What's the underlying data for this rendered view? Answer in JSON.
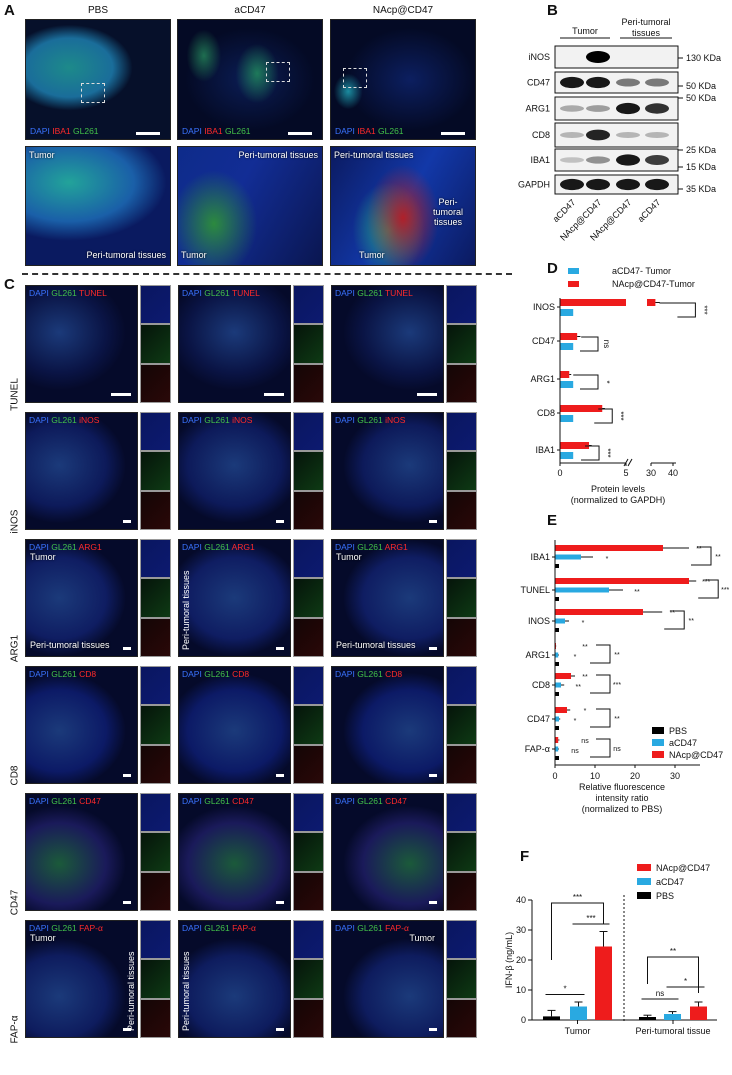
{
  "panel_labels": {
    "a": "A",
    "b": "B",
    "c": "C",
    "d": "D",
    "e": "E",
    "f": "F"
  },
  "panel_a": {
    "columns": [
      "PBS",
      "aCD47",
      "NAcp@CD47"
    ],
    "stain": {
      "dapi": "DAPI",
      "marker": "IBA1",
      "gl": "GL261"
    },
    "zoom_labels": [
      {
        "tumor": "Tumor",
        "peri": "Peri-tumoral tissues"
      },
      {
        "tumor": "Tumor",
        "peri": "Peri-tumoral tissues"
      },
      {
        "tumor": "Tumor",
        "peri_top": "Peri-tumoral tissues",
        "peri_right": "Peri-tumoral tissues"
      }
    ]
  },
  "panel_b": {
    "groups": [
      {
        "label": "Tumor"
      },
      {
        "label": "Peri-tumoral tissues"
      }
    ],
    "lanes": [
      "aCD47",
      "NAcp@CD47",
      "NAcp@CD47",
      "aCD47"
    ],
    "blots": [
      {
        "protein": "iNOS",
        "bands": [
          0,
          1,
          0,
          0
        ]
      },
      {
        "protein": "CD47",
        "bands": [
          0.9,
          0.9,
          0.5,
          0.5
        ]
      },
      {
        "protein": "ARG1",
        "bands": [
          0.3,
          0.35,
          0.9,
          0.8
        ]
      },
      {
        "protein": "CD8",
        "bands": [
          0.25,
          0.85,
          0.25,
          0.25
        ]
      },
      {
        "protein": "IBA1",
        "bands": [
          0.2,
          0.4,
          0.9,
          0.75
        ]
      },
      {
        "protein": "GAPDH",
        "bands": [
          0.9,
          0.9,
          0.9,
          0.9
        ]
      }
    ],
    "markers": [
      "130 KDa",
      "50 KDa",
      "50 KDa",
      "25 KDa",
      "15 KDa",
      "35 KDa"
    ]
  },
  "panel_c": {
    "stain": {
      "dapi": "DAPI",
      "gl": "GL261"
    },
    "rows": [
      {
        "label": "TUNEL",
        "marker": "TUNEL",
        "annotations": [
          [],
          [],
          []
        ]
      },
      {
        "label": "iNOS",
        "marker": "iNOS",
        "annotations": [
          [],
          [],
          []
        ]
      },
      {
        "label": "ARG1",
        "marker": "ARG1",
        "annotations": [
          [
            {
              "text": "Tumor",
              "pos": "top"
            },
            {
              "text": "Peri-tumoral tissues",
              "pos": "bottom"
            }
          ],
          [
            {
              "text": "Peri-tumoral tissues",
              "pos": "vleft"
            }
          ],
          [
            {
              "text": "Tumor",
              "pos": "top"
            },
            {
              "text": "Peri-tumoral tissues",
              "pos": "bottom"
            }
          ]
        ]
      },
      {
        "label": "CD8",
        "marker": "CD8",
        "annotations": [
          [],
          [],
          []
        ]
      },
      {
        "label": "CD47",
        "marker": "CD47",
        "annotations": [
          [],
          [],
          []
        ]
      },
      {
        "label": "FAP-α",
        "marker": "FAP-α",
        "annotations": [
          [
            {
              "text": "Tumor",
              "pos": "top"
            },
            {
              "text": "Peri-tumoral tissues",
              "pos": "vright"
            }
          ],
          [
            {
              "text": "Peri-tumoral tissues",
              "pos": "vleft"
            }
          ],
          [
            {
              "text": "Tumor",
              "pos": "topright"
            }
          ]
        ]
      }
    ]
  },
  "chart_data": [
    {
      "panel": "D",
      "type": "bar",
      "orientation": "horizontal",
      "categories": [
        "INOS",
        "CD47",
        "ARG1",
        "CD8",
        "IBA1"
      ],
      "series": [
        {
          "name": "aCD47- Tumor",
          "color": "#29a9e1",
          "values": [
            1,
            1,
            1,
            1,
            1
          ]
        },
        {
          "name": "NAcp@CD47-Tumor",
          "color": "#ee1c1c",
          "values": [
            32,
            1.3,
            0.7,
            3.2,
            2.2
          ],
          "errors": [
            2,
            0.25,
            0.15,
            0.2,
            0.2
          ]
        }
      ],
      "significance": [
        "***",
        "ns",
        "*",
        "***",
        "***"
      ],
      "xlabel": [
        "Protein levels",
        "(normalized to GAPDH)"
      ],
      "xticks": [
        "0",
        "5",
        "30",
        "40"
      ],
      "axis_break": [
        5,
        30
      ],
      "xlim": [
        0,
        40
      ],
      "legend": "top"
    },
    {
      "panel": "E",
      "type": "bar",
      "orientation": "horizontal",
      "categories": [
        "IBA1",
        "TUNEL",
        "INOS",
        "ARG1",
        "CD8",
        "CD47",
        "FAP-α"
      ],
      "series": [
        {
          "name": "NAcp@CD47",
          "color": "#ee1c1c",
          "values": [
            27,
            33.5,
            22,
            0.2,
            4,
            3,
            0.8
          ],
          "errors": [
            6.5,
            1.8,
            4.8,
            0.1,
            1,
            0.8,
            0.3
          ]
        },
        {
          "name": "aCD47",
          "color": "#29a9e1",
          "values": [
            6.5,
            13.5,
            2.5,
            0.8,
            1.5,
            1,
            0.8
          ],
          "errors": [
            3,
            3.5,
            1,
            0.2,
            0.8,
            0.3,
            0.2
          ]
        },
        {
          "name": "PBS",
          "color": "#000000",
          "values": [
            1,
            1,
            1,
            1,
            1,
            1,
            1
          ]
        }
      ],
      "significance": [
        [
          "**",
          "*",
          "**"
        ],
        [
          "***",
          "**",
          "***"
        ],
        [
          "**",
          "*",
          "**"
        ],
        [
          "**",
          "*",
          "**"
        ],
        [
          "**",
          "**",
          "***"
        ],
        [
          "*",
          "*",
          "**"
        ],
        [
          "ns",
          "ns",
          "ns"
        ]
      ],
      "xlabel": [
        "Relative fluorescence",
        "intensity ratio",
        "(normalized to PBS)"
      ],
      "xticks": [
        "0",
        "10",
        "20",
        "30"
      ],
      "xlim": [
        0,
        35
      ],
      "legend": "bottom-right"
    },
    {
      "panel": "F",
      "type": "bar",
      "categories": [
        "Tumor",
        "Peri-tumoral tissue"
      ],
      "series": [
        {
          "name": "PBS",
          "color": "#000000",
          "values": [
            1.2,
            1
          ],
          "errors": [
            2,
            0.6
          ]
        },
        {
          "name": "aCD47",
          "color": "#29a9e1",
          "values": [
            4.5,
            2
          ],
          "errors": [
            1.5,
            0.8
          ]
        },
        {
          "name": "NAcp@CD47",
          "color": "#ee1c1c",
          "values": [
            24.5,
            4.5
          ],
          "errors": [
            5,
            1.5
          ]
        }
      ],
      "legend_order": [
        "NAcp@CD47",
        "aCD47",
        "PBS"
      ],
      "comparisons": [
        {
          "group": 0,
          "from": 0,
          "to": 2,
          "y": 39,
          "label": "***"
        },
        {
          "group": 0,
          "from": 1,
          "to": 2,
          "y": 32,
          "label": "***"
        },
        {
          "group": 0,
          "from": 0,
          "to": 1,
          "y": 8.5,
          "label": "*"
        },
        {
          "group": 1,
          "from": 0,
          "to": 2,
          "y": 21,
          "label": "**"
        },
        {
          "group": 1,
          "from": 1,
          "to": 2,
          "y": 11,
          "label": "*"
        },
        {
          "group": 1,
          "from": 0,
          "to": 1,
          "y": 7,
          "label": "ns"
        }
      ],
      "ylabel": "IFN-β (ng/mL)",
      "yticks": [
        "0",
        "10",
        "20",
        "30",
        "40"
      ],
      "ylim": [
        0,
        40
      ],
      "legend": "top-right"
    }
  ]
}
